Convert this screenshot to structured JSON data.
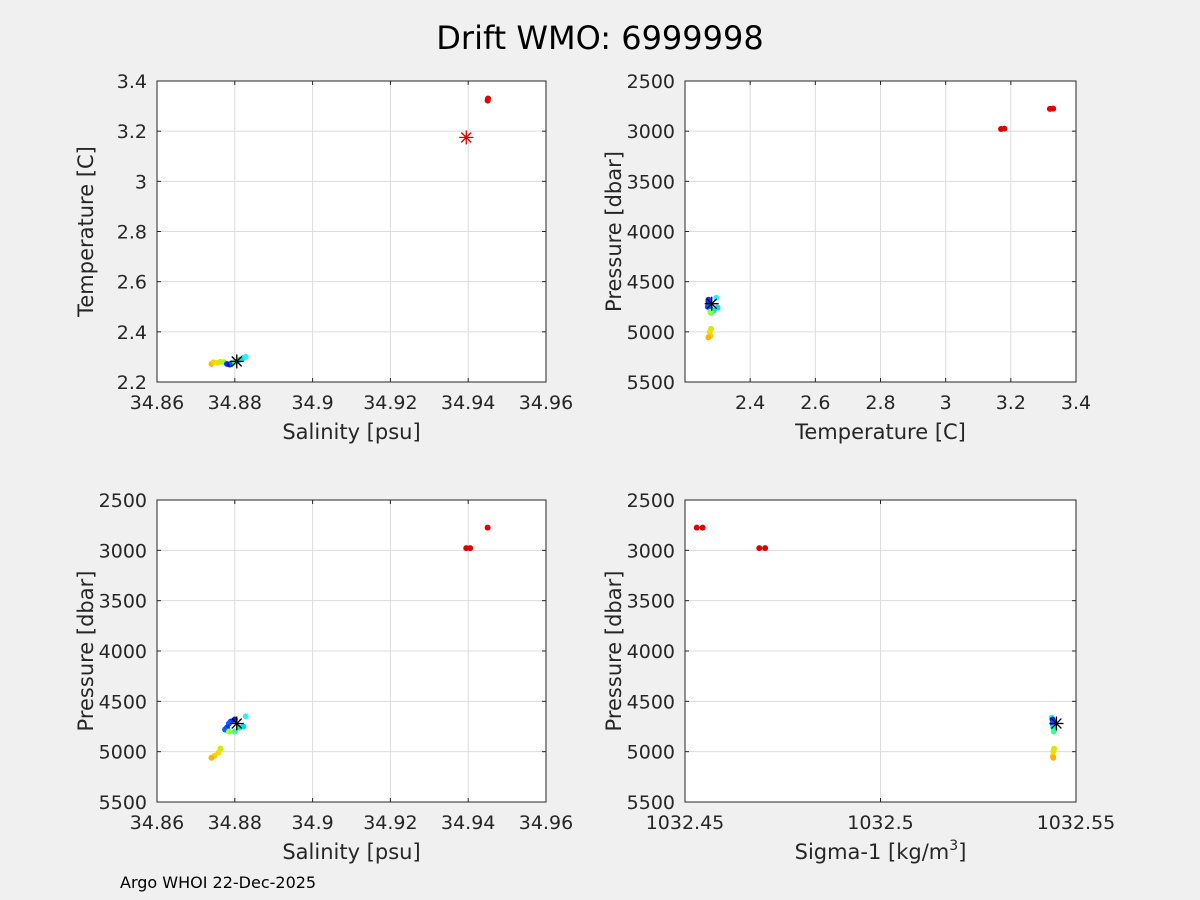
{
  "figure": {
    "title": "Drift WMO: 6999998",
    "footer": "Argo WHOI 22-Dec-2025",
    "background": "#f0f0f0",
    "axes_background": "#ffffff",
    "grid_color": "#dcdcdc",
    "axis_color": "#262626"
  },
  "chart_data": [
    {
      "type": "scatter",
      "name": "ts-plot",
      "title": "",
      "xlabel": "Salinity [psu]",
      "ylabel": "Temperature [C]",
      "xlim": [
        34.86,
        34.96
      ],
      "ylim": [
        2.2,
        3.4
      ],
      "reverse_y": false,
      "grid": true,
      "xticks": [
        {
          "value": 34.86,
          "label": "34.86"
        },
        {
          "value": 34.88,
          "label": "34.88"
        },
        {
          "value": 34.9,
          "label": "34.9"
        },
        {
          "value": 34.92,
          "label": "34.92"
        },
        {
          "value": 34.94,
          "label": "34.94"
        },
        {
          "value": 34.96,
          "label": "34.96"
        }
      ],
      "yticks": [
        {
          "value": 2.2,
          "label": "2.2"
        },
        {
          "value": 2.4,
          "label": "2.4"
        },
        {
          "value": 2.6,
          "label": "2.6"
        },
        {
          "value": 2.8,
          "label": "2.8"
        },
        {
          "value": 3.0,
          "label": "3"
        },
        {
          "value": 3.2,
          "label": "3.2"
        },
        {
          "value": 3.4,
          "label": "3.4"
        }
      ],
      "points": [
        {
          "x": 34.945,
          "y": 3.322,
          "color": "#e00000"
        },
        {
          "x": 34.9451,
          "y": 3.33,
          "color": "#e00000"
        },
        {
          "x": 34.874,
          "y": 2.272,
          "color": "#ffb300"
        },
        {
          "x": 34.8745,
          "y": 2.278,
          "color": "#ffd000"
        },
        {
          "x": 34.8755,
          "y": 2.276,
          "color": "#f0e000"
        },
        {
          "x": 34.8763,
          "y": 2.28,
          "color": "#c8f000"
        },
        {
          "x": 34.8772,
          "y": 2.279,
          "color": "#90ff40"
        },
        {
          "x": 34.878,
          "y": 2.272,
          "color": "#1030ff"
        },
        {
          "x": 34.8787,
          "y": 2.27,
          "color": "#0020c0"
        },
        {
          "x": 34.8793,
          "y": 2.275,
          "color": "#0060ff"
        },
        {
          "x": 34.88,
          "y": 2.28,
          "color": "#40ff90"
        },
        {
          "x": 34.8812,
          "y": 2.288,
          "color": "#20e0c0"
        },
        {
          "x": 34.8822,
          "y": 2.296,
          "color": "#00d8ff"
        },
        {
          "x": 34.8828,
          "y": 2.3,
          "color": "#30f0ff"
        }
      ],
      "markers": [
        {
          "x": 34.9395,
          "y": 3.175,
          "color": "#e00000"
        },
        {
          "x": 34.8805,
          "y": 2.282,
          "color": "#000000"
        }
      ]
    },
    {
      "type": "scatter",
      "name": "pt-plot",
      "title": "",
      "xlabel": "Temperature [C]",
      "ylabel": "Pressure [dbar]",
      "xlim": [
        2.2,
        3.4
      ],
      "ylim": [
        2500,
        5500
      ],
      "reverse_y": true,
      "grid": true,
      "xticks": [
        {
          "value": 2.4,
          "label": "2.4"
        },
        {
          "value": 2.6,
          "label": "2.6"
        },
        {
          "value": 2.8,
          "label": "2.8"
        },
        {
          "value": 3.0,
          "label": "3"
        },
        {
          "value": 3.2,
          "label": "3.2"
        },
        {
          "value": 3.4,
          "label": "3.4"
        }
      ],
      "yticks": [
        {
          "value": 2500,
          "label": "2500"
        },
        {
          "value": 3000,
          "label": "3000"
        },
        {
          "value": 3500,
          "label": "3500"
        },
        {
          "value": 4000,
          "label": "4000"
        },
        {
          "value": 4500,
          "label": "4500"
        },
        {
          "value": 5000,
          "label": "5000"
        },
        {
          "value": 5500,
          "label": "5500"
        }
      ],
      "points": [
        {
          "x": 3.33,
          "y": 2775,
          "color": "#e00000"
        },
        {
          "x": 3.32,
          "y": 2778,
          "color": "#e00000"
        },
        {
          "x": 3.18,
          "y": 2975,
          "color": "#e00000"
        },
        {
          "x": 3.17,
          "y": 2978,
          "color": "#e00000"
        },
        {
          "x": 2.272,
          "y": 4700,
          "color": "#0020c0"
        },
        {
          "x": 2.275,
          "y": 4720,
          "color": "#1030ff"
        },
        {
          "x": 2.27,
          "y": 4750,
          "color": "#0060ff"
        },
        {
          "x": 2.278,
          "y": 4770,
          "color": "#0060ff"
        },
        {
          "x": 2.272,
          "y": 4680,
          "color": "#1030ff"
        },
        {
          "x": 2.296,
          "y": 4660,
          "color": "#30f0ff"
        },
        {
          "x": 2.3,
          "y": 4760,
          "color": "#00d8ff"
        },
        {
          "x": 2.288,
          "y": 4790,
          "color": "#20e0c0"
        },
        {
          "x": 2.28,
          "y": 4810,
          "color": "#40ff90"
        },
        {
          "x": 2.278,
          "y": 4800,
          "color": "#90ff40"
        },
        {
          "x": 2.28,
          "y": 4970,
          "color": "#c8f000"
        },
        {
          "x": 2.276,
          "y": 5000,
          "color": "#f0e000"
        },
        {
          "x": 2.278,
          "y": 5040,
          "color": "#ffd000"
        },
        {
          "x": 2.272,
          "y": 5055,
          "color": "#ffb300"
        }
      ],
      "markers": [
        {
          "x": 2.282,
          "y": 4720,
          "color": "#000000"
        }
      ]
    },
    {
      "type": "scatter",
      "name": "ps-plot",
      "title": "",
      "xlabel": "Salinity [psu]",
      "ylabel": "Pressure [dbar]",
      "xlim": [
        34.86,
        34.96
      ],
      "ylim": [
        2500,
        5500
      ],
      "reverse_y": true,
      "grid": true,
      "xticks": [
        {
          "value": 34.86,
          "label": "34.86"
        },
        {
          "value": 34.88,
          "label": "34.88"
        },
        {
          "value": 34.9,
          "label": "34.9"
        },
        {
          "value": 34.92,
          "label": "34.92"
        },
        {
          "value": 34.94,
          "label": "34.94"
        },
        {
          "value": 34.96,
          "label": "34.96"
        }
      ],
      "yticks": [
        {
          "value": 2500,
          "label": "2500"
        },
        {
          "value": 3000,
          "label": "3000"
        },
        {
          "value": 3500,
          "label": "3500"
        },
        {
          "value": 4000,
          "label": "4000"
        },
        {
          "value": 4500,
          "label": "4500"
        },
        {
          "value": 5000,
          "label": "5000"
        },
        {
          "value": 5500,
          "label": "5500"
        }
      ],
      "points": [
        {
          "x": 34.945,
          "y": 2775,
          "color": "#e00000"
        },
        {
          "x": 34.9395,
          "y": 2978,
          "color": "#e00000"
        },
        {
          "x": 34.9405,
          "y": 2978,
          "color": "#e00000"
        },
        {
          "x": 34.88,
          "y": 4680,
          "color": "#0020c0"
        },
        {
          "x": 34.879,
          "y": 4700,
          "color": "#1030ff"
        },
        {
          "x": 34.8785,
          "y": 4720,
          "color": "#0060ff"
        },
        {
          "x": 34.878,
          "y": 4760,
          "color": "#1030ff"
        },
        {
          "x": 34.8775,
          "y": 4780,
          "color": "#0060ff"
        },
        {
          "x": 34.8828,
          "y": 4650,
          "color": "#30f0ff"
        },
        {
          "x": 34.8822,
          "y": 4750,
          "color": "#00d8ff"
        },
        {
          "x": 34.8812,
          "y": 4760,
          "color": "#20e0c0"
        },
        {
          "x": 34.88,
          "y": 4800,
          "color": "#40ff90"
        },
        {
          "x": 34.8785,
          "y": 4800,
          "color": "#90ff40"
        },
        {
          "x": 34.8763,
          "y": 4970,
          "color": "#c8f000"
        },
        {
          "x": 34.8758,
          "y": 5010,
          "color": "#f0e000"
        },
        {
          "x": 34.8748,
          "y": 5040,
          "color": "#ffd000"
        },
        {
          "x": 34.874,
          "y": 5060,
          "color": "#ffb300"
        }
      ],
      "markers": [
        {
          "x": 34.8805,
          "y": 4720,
          "color": "#000000"
        }
      ]
    },
    {
      "type": "scatter",
      "name": "psigma-plot",
      "title": "",
      "xlabel": "Sigma-1 [kg/m",
      "xlabel_superscript": "3",
      "xlabel_suffix": "]",
      "ylabel": "Pressure [dbar]",
      "xlim": [
        1032.45,
        1032.55
      ],
      "ylim": [
        2500,
        5500
      ],
      "reverse_y": true,
      "grid": true,
      "xticks": [
        {
          "value": 1032.45,
          "label": "1032.45"
        },
        {
          "value": 1032.5,
          "label": "1032.5"
        },
        {
          "value": 1032.55,
          "label": "1032.55"
        }
      ],
      "yticks": [
        {
          "value": 2500,
          "label": "2500"
        },
        {
          "value": 3000,
          "label": "3000"
        },
        {
          "value": 3500,
          "label": "3500"
        },
        {
          "value": 4000,
          "label": "4000"
        },
        {
          "value": 4500,
          "label": "4500"
        },
        {
          "value": 5000,
          "label": "5000"
        },
        {
          "value": 5500,
          "label": "5500"
        }
      ],
      "points": [
        {
          "x": 1032.453,
          "y": 2775,
          "color": "#e00000"
        },
        {
          "x": 1032.4545,
          "y": 2775,
          "color": "#e00000"
        },
        {
          "x": 1032.469,
          "y": 2978,
          "color": "#e00000"
        },
        {
          "x": 1032.4705,
          "y": 2978,
          "color": "#e00000"
        },
        {
          "x": 1032.5438,
          "y": 4660,
          "color": "#30f0ff"
        },
        {
          "x": 1032.544,
          "y": 4680,
          "color": "#0020c0"
        },
        {
          "x": 1032.5442,
          "y": 4700,
          "color": "#1030ff"
        },
        {
          "x": 1032.544,
          "y": 4720,
          "color": "#0060ff"
        },
        {
          "x": 1032.5444,
          "y": 4740,
          "color": "#1030ff"
        },
        {
          "x": 1032.5442,
          "y": 4760,
          "color": "#00d8ff"
        },
        {
          "x": 1032.5445,
          "y": 4780,
          "color": "#20e0c0"
        },
        {
          "x": 1032.5443,
          "y": 4800,
          "color": "#40ff90"
        },
        {
          "x": 1032.5444,
          "y": 4970,
          "color": "#c8f000"
        },
        {
          "x": 1032.5442,
          "y": 5000,
          "color": "#f0e000"
        },
        {
          "x": 1032.5441,
          "y": 5045,
          "color": "#ffd000"
        },
        {
          "x": 1032.5442,
          "y": 5060,
          "color": "#ffb300"
        }
      ],
      "markers": [
        {
          "x": 1032.545,
          "y": 4720,
          "color": "#000000"
        }
      ]
    }
  ]
}
